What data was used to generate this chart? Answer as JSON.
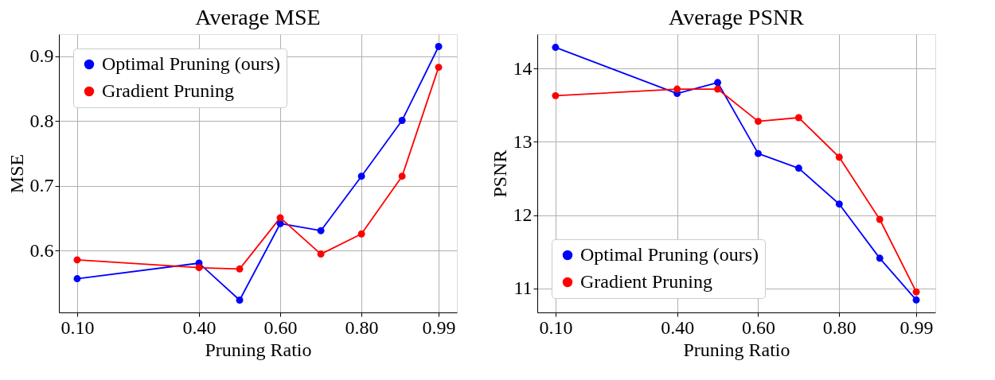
{
  "chart_data": [
    {
      "type": "line",
      "title": "Average MSE",
      "xlabel": "Pruning Ratio",
      "ylabel": "MSE",
      "x": [
        0.1,
        0.4,
        0.5,
        0.6,
        0.7,
        0.8,
        0.9,
        0.99
      ],
      "xlim": [
        0.055,
        1.035
      ],
      "xticks": [
        {
          "value": 0.1,
          "label": "0.10"
        },
        {
          "value": 0.4,
          "label": "0.40"
        },
        {
          "value": 0.6,
          "label": "0.60"
        },
        {
          "value": 0.8,
          "label": "0.80"
        },
        0.99
      ],
      "ylim": [
        0.505,
        0.934
      ],
      "yticks": [
        0.6,
        0.7,
        0.8,
        0.9
      ],
      "grid": true,
      "legend": "top left",
      "marker": "circle",
      "line_style": "solid",
      "series": [
        {
          "name": "Optimal Pruning (ours)",
          "color": "#0000ff",
          "values": [
            0.557,
            0.581,
            0.524,
            0.642,
            0.631,
            0.715,
            0.801,
            0.915
          ]
        },
        {
          "name": "Gradient Pruning",
          "color": "#ff0000",
          "values": [
            0.586,
            0.574,
            0.572,
            0.651,
            0.595,
            0.626,
            0.715,
            0.883
          ]
        }
      ]
    },
    {
      "type": "line",
      "title": "Average PSNR",
      "xlabel": "Pruning Ratio",
      "ylabel": "PSNR",
      "x": [
        0.1,
        0.4,
        0.5,
        0.6,
        0.7,
        0.8,
        0.9,
        0.99
      ],
      "xlim": [
        0.055,
        1.037
      ],
      "xticks": [
        {
          "value": 0.1,
          "label": "0.10"
        },
        {
          "value": 0.4,
          "label": "0.40"
        },
        {
          "value": 0.6,
          "label": "0.60"
        },
        {
          "value": 0.8,
          "label": "0.80"
        },
        0.99
      ],
      "ylim": [
        10.67,
        14.47
      ],
      "yticks": [
        11,
        12,
        13,
        14
      ],
      "grid": true,
      "legend": "bottom left",
      "marker": "circle",
      "line_style": "solid",
      "series": [
        {
          "name": "Optimal Pruning (ours)",
          "color": "#0000ff",
          "values": [
            14.29,
            13.66,
            13.81,
            12.84,
            12.64,
            12.15,
            11.41,
            10.84
          ]
        },
        {
          "name": "Gradient Pruning",
          "color": "#ff0000",
          "values": [
            13.63,
            13.72,
            13.72,
            13.28,
            13.33,
            12.79,
            11.94,
            10.95
          ]
        }
      ]
    }
  ]
}
